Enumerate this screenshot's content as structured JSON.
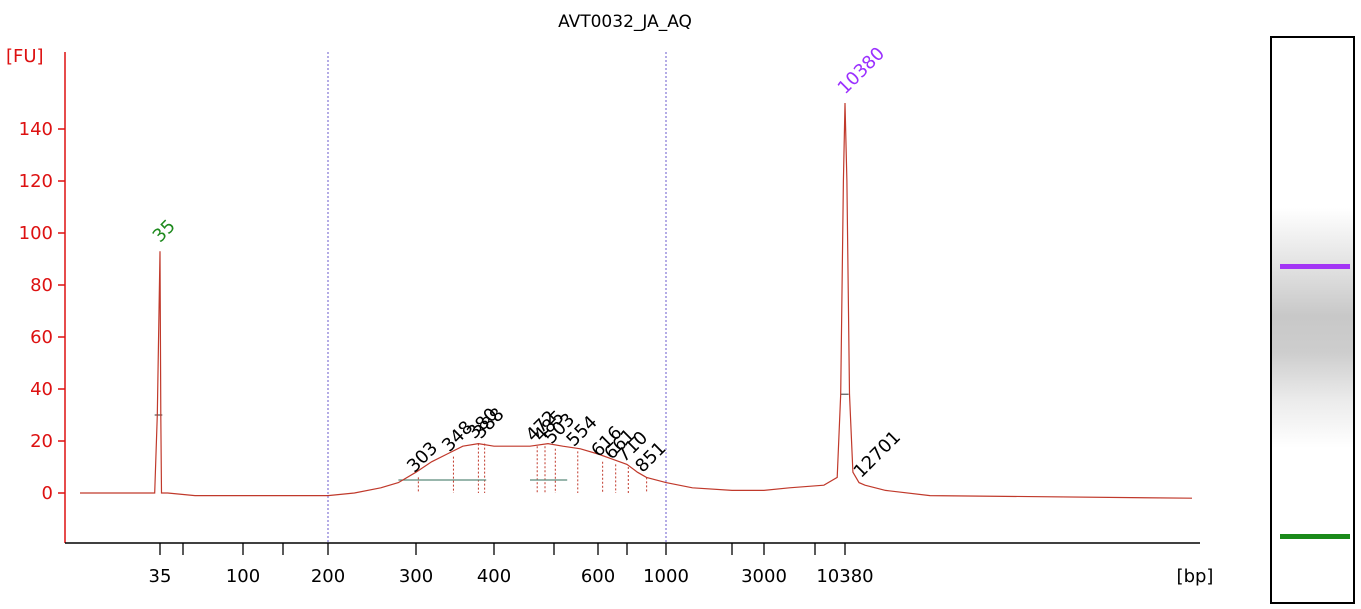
{
  "chart_data": {
    "type": "line",
    "title": "AVT0032_JA_AQ",
    "ylabel": "[FU]",
    "xlabel": "[bp]",
    "ylim": [
      -20,
      155
    ],
    "yticks": [
      0,
      20,
      40,
      60,
      80,
      100,
      120,
      140
    ],
    "x_scale": "bioanalyzer sizing (nonlinear)",
    "xticks": [
      {
        "label": "35",
        "bp": 35
      },
      {
        "label": "",
        "bp": 50
      },
      {
        "label": "100",
        "bp": 100
      },
      {
        "label": "",
        "bp": 150
      },
      {
        "label": "200",
        "bp": 200
      },
      {
        "label": "300",
        "bp": 300
      },
      {
        "label": "400",
        "bp": 400
      },
      {
        "label": "",
        "bp": 500
      },
      {
        "label": "600",
        "bp": 600
      },
      {
        "label": "",
        "bp": 700
      },
      {
        "label": "1000",
        "bp": 1000
      },
      {
        "label": "",
        "bp": 2000
      },
      {
        "label": "3000",
        "bp": 3000
      },
      {
        "label": "",
        "bp": 7000
      },
      {
        "label": "10380",
        "bp": 10380
      }
    ],
    "grid_lines_bp": [
      200,
      1000
    ],
    "series": [
      {
        "color": "#c0392b",
        "points": [
          [
            20,
            0
          ],
          [
            34,
            0
          ],
          [
            34.5,
            30
          ],
          [
            35,
            93
          ],
          [
            35.5,
            30
          ],
          [
            36,
            0
          ],
          [
            40,
            0
          ],
          [
            60,
            -1
          ],
          [
            100,
            -1
          ],
          [
            150,
            -1
          ],
          [
            200,
            -1
          ],
          [
            230,
            0
          ],
          [
            260,
            2
          ],
          [
            280,
            4
          ],
          [
            300,
            8
          ],
          [
            320,
            12
          ],
          [
            340,
            15
          ],
          [
            360,
            18
          ],
          [
            380,
            19
          ],
          [
            400,
            18
          ],
          [
            430,
            18
          ],
          [
            460,
            18
          ],
          [
            490,
            19
          ],
          [
            520,
            18
          ],
          [
            560,
            17
          ],
          [
            600,
            15
          ],
          [
            650,
            13
          ],
          [
            700,
            11
          ],
          [
            780,
            8
          ],
          [
            850,
            6
          ],
          [
            1000,
            4
          ],
          [
            1400,
            2
          ],
          [
            2000,
            1
          ],
          [
            3000,
            1
          ],
          [
            5000,
            2
          ],
          [
            8000,
            3
          ],
          [
            9500,
            6
          ],
          [
            9900,
            38
          ],
          [
            10200,
            120
          ],
          [
            10380,
            150
          ],
          [
            10600,
            120
          ],
          [
            10900,
            38
          ],
          [
            11300,
            8
          ],
          [
            12000,
            4
          ],
          [
            12701,
            3
          ],
          [
            15000,
            1
          ],
          [
            20000,
            -1
          ],
          [
            30000,
            -2
          ]
        ]
      }
    ],
    "marker_peaks": [
      {
        "label": "35",
        "bp": 35,
        "fu": 93,
        "color": "#1e8a1e"
      },
      {
        "label": "10380",
        "bp": 10380,
        "fu": 150,
        "color": "#9b30ff"
      }
    ],
    "peak_labels": [
      {
        "label": "303",
        "bp": 303,
        "fu": 6
      },
      {
        "label": "348",
        "bp": 348,
        "fu": 14
      },
      {
        "label": "380",
        "bp": 380,
        "fu": 19
      },
      {
        "label": "388",
        "bp": 388,
        "fu": 19
      },
      {
        "label": "472",
        "bp": 472,
        "fu": 18
      },
      {
        "label": "485",
        "bp": 485,
        "fu": 18
      },
      {
        "label": "503",
        "bp": 503,
        "fu": 17
      },
      {
        "label": "554",
        "bp": 554,
        "fu": 16
      },
      {
        "label": "616",
        "bp": 616,
        "fu": 12
      },
      {
        "label": "661",
        "bp": 661,
        "fu": 11
      },
      {
        "label": "710",
        "bp": 710,
        "fu": 10
      },
      {
        "label": "851",
        "bp": 851,
        "fu": 6
      },
      {
        "label": "12701",
        "bp": 12701,
        "fu": 4
      }
    ]
  },
  "gel": {
    "bands": [
      {
        "name": "upper-marker",
        "bp": 10380,
        "color": "#a335f5"
      },
      {
        "name": "lower-marker",
        "bp": 35,
        "color": "#1a8a1a"
      }
    ]
  }
}
